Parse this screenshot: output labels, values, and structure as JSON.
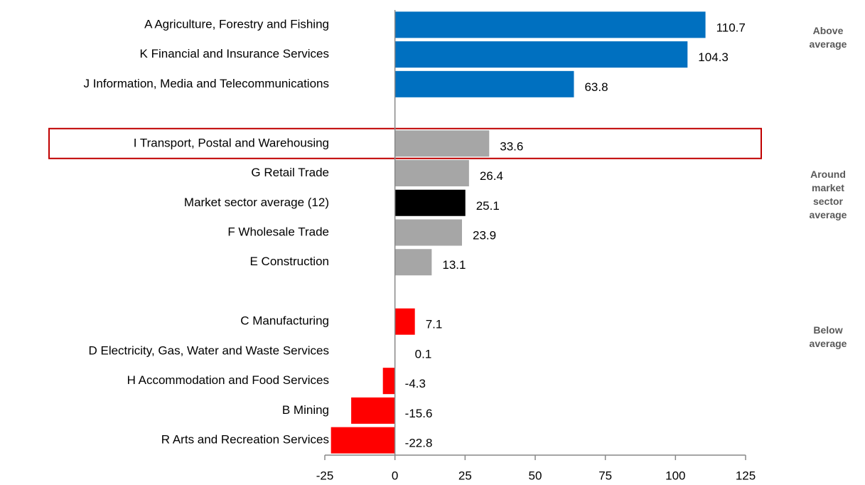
{
  "chart_data": {
    "type": "bar",
    "orientation": "horizontal",
    "categories": [
      "A Agriculture, Forestry and Fishing",
      "K Financial and Insurance Services",
      "J Information, Media and Telecommunications",
      null,
      "I Transport, Postal and Warehousing",
      "G Retail Trade",
      "Market sector average (12)",
      "F Wholesale Trade",
      "E Construction",
      null,
      "C Manufacturing",
      "D Electricity, Gas, Water and Waste Services",
      "H Accommodation and Food Services",
      "B Mining",
      "R Arts and Recreation Services"
    ],
    "values": [
      110.7,
      104.3,
      63.8,
      null,
      33.6,
      26.4,
      25.1,
      23.9,
      13.1,
      null,
      7.1,
      0.1,
      -4.3,
      -15.6,
      -22.8
    ],
    "colors": [
      "#0070c0",
      "#0070c0",
      "#0070c0",
      null,
      "#a6a6a6",
      "#a6a6a6",
      "#000000",
      "#a6a6a6",
      "#a6a6a6",
      null,
      "#ff0000",
      "#ff0000",
      "#ff0000",
      "#ff0000",
      "#ff0000"
    ],
    "xlim": [
      -25,
      125
    ],
    "xticks": [
      -25,
      0,
      25,
      50,
      75,
      100,
      125
    ],
    "highlighted_category": 4,
    "annotations": [
      "Above average",
      "Around market sector average",
      "Below average"
    ]
  }
}
